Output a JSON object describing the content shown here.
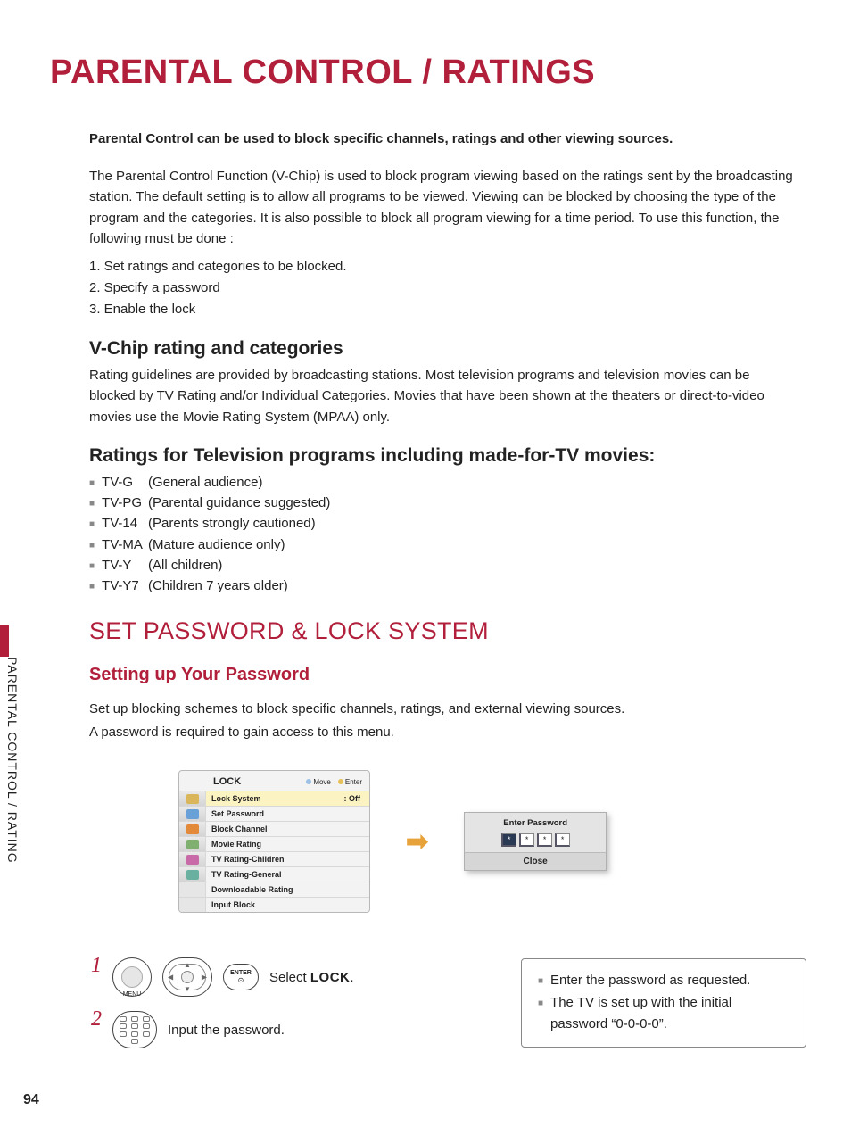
{
  "colors": {
    "accent": "#b11f3b",
    "text": "#222222",
    "bullet": "#888888",
    "arrow": "#e8a23a",
    "panel_bg": "#f3f3f3",
    "panel_border": "#b8b8b8",
    "panel_sel_bg": "#fcf3c2",
    "dialog_bg": "#e4e4e4"
  },
  "page_number": "94",
  "side_tab": "PARENTAL CONTROL / RATING",
  "title": "PARENTAL CONTROL / RATINGS",
  "intro_bold": "Parental Control can be used to block specific channels, ratings and other viewing sources.",
  "intro_para": "The Parental Control Function (V-Chip) is used to block program viewing based on the ratings sent by the broadcasting station. The default setting is to allow all programs to be viewed. Viewing can be blocked by choosing the type of the program and the categories. It is also possible to block all program viewing for a time period. To use this function, the following must be done :",
  "steps_intro": [
    "1. Set ratings and categories to be blocked.",
    "2. Specify a password",
    "3. Enable the lock"
  ],
  "vchip_heading": "V-Chip rating and categories",
  "vchip_para": "Rating guidelines are provided by broadcasting stations. Most television programs and television movies can be blocked by TV Rating and/or Individual Categories. Movies that have been shown at the theaters or direct-to-video movies use the Movie Rating System (MPAA) only.",
  "tv_heading": "Ratings for Television programs including made-for-TV movies:",
  "tv_ratings": [
    {
      "code": "TV-G",
      "desc": "(General audience)"
    },
    {
      "code": "TV-PG",
      "desc": "(Parental guidance suggested)"
    },
    {
      "code": "TV-14",
      "desc": "(Parents strongly cautioned)"
    },
    {
      "code": "TV-MA",
      "desc": "(Mature audience only)"
    },
    {
      "code": "TV-Y",
      "desc": "(All children)"
    },
    {
      "code": "TV-Y7",
      "desc": "(Children 7 years older)"
    }
  ],
  "section_title": "SET PASSWORD & LOCK SYSTEM",
  "sub_title": "Setting up Your Password",
  "setup_para_1": "Set up blocking schemes to block specific channels, ratings, and external viewing sources.",
  "setup_para_2": "A password is required to gain access to this menu.",
  "lock_panel": {
    "title": "LOCK",
    "header_hint_move": "Move",
    "header_hint_enter": "Enter",
    "icon_colors": [
      "#d9b65a",
      "#6aa0d8",
      "#e28a3a",
      "#7fb070",
      "#c96aa8",
      "#6ab0a0"
    ],
    "items": [
      {
        "label": "Lock System",
        "value": ": Off",
        "selected": true
      },
      {
        "label": "Set Password"
      },
      {
        "label": "Block Channel"
      },
      {
        "label": "Movie Rating"
      },
      {
        "label": "TV Rating-Children"
      },
      {
        "label": "TV Rating-General"
      },
      {
        "label": "Downloadable Rating"
      },
      {
        "label": "Input Block"
      }
    ]
  },
  "pw_dialog": {
    "title": "Enter Password",
    "mask": "*",
    "close": "Close"
  },
  "remote_steps": {
    "step1_num": "1",
    "menu_label": "MENU",
    "enter_label": "ENTER",
    "step1_text_pre": "Select ",
    "step1_text_bold": "LOCK",
    "step1_text_post": ".",
    "step2_num": "2",
    "step2_text": "Input the password."
  },
  "note_box": {
    "line1": "Enter the password as requested.",
    "line2": "The TV is set up with the initial password “0-0-0-0”."
  }
}
